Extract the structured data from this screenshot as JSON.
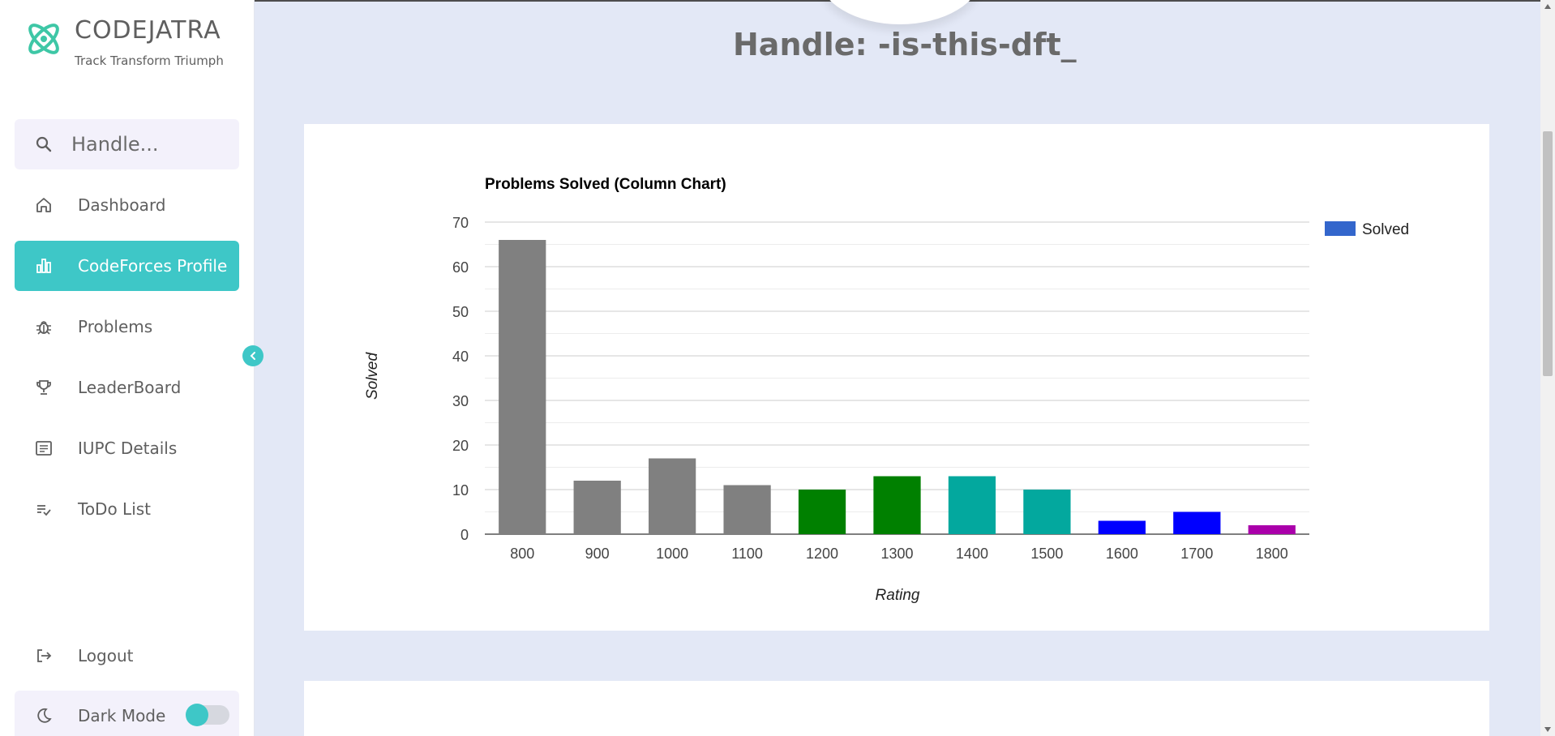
{
  "brand": {
    "name": "CODEJATRA",
    "tagline": "Track Transform Triumph"
  },
  "search": {
    "placeholder": "Handle..."
  },
  "nav": [
    {
      "label": "Dashboard",
      "icon": "home-icon"
    },
    {
      "label": "CodeForces Profile",
      "icon": "bar-chart-icon",
      "active": true
    },
    {
      "label": "Problems",
      "icon": "bug-icon"
    },
    {
      "label": "LeaderBoard",
      "icon": "trophy-icon"
    },
    {
      "label": "IUPC Details",
      "icon": "document-icon"
    },
    {
      "label": "ToDo List",
      "icon": "checklist-icon"
    }
  ],
  "logout": {
    "label": "Logout"
  },
  "dark_mode": {
    "label": "Dark Mode",
    "enabled": false
  },
  "colors": {
    "accent": "#3ec7c7"
  },
  "handle": "Handle: -is-this-dft_",
  "chart_data": {
    "type": "bar",
    "title": "Problems Solved (Column Chart)",
    "xlabel": "Rating",
    "ylabel": "Solved",
    "categories": [
      "800",
      "900",
      "1000",
      "1100",
      "1200",
      "1300",
      "1400",
      "1500",
      "1600",
      "1700",
      "1800"
    ],
    "series": [
      {
        "name": "Solved",
        "values": [
          66,
          12,
          17,
          11,
          10,
          13,
          13,
          10,
          3,
          5,
          2
        ]
      }
    ],
    "bar_colors": [
      "#808080",
      "#808080",
      "#808080",
      "#808080",
      "#008000",
      "#008000",
      "#03a89e",
      "#03a89e",
      "#0000ff",
      "#0000ff",
      "#aa00aa"
    ],
    "legend_color": "#3366cc",
    "ylim": [
      0,
      70
    ],
    "yticks": [
      0,
      10,
      20,
      30,
      40,
      50,
      60,
      70
    ],
    "grid": true,
    "legend_position": "right"
  }
}
